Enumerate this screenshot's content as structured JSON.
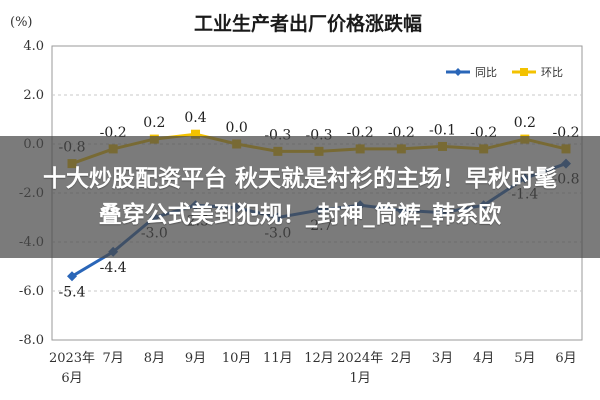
{
  "chart_data": {
    "type": "line",
    "title": "工业生产者出厂价格涨跌幅",
    "ylabel": "(%)",
    "ylim": [
      -8.0,
      4.0
    ],
    "yticks": [
      "4.0",
      "2.0",
      "0.0",
      "-2.0",
      "-4.0",
      "-6.0",
      "-8.0"
    ],
    "categories": [
      "2023年6月",
      "7月",
      "8月",
      "9月",
      "10月",
      "11月",
      "12月",
      "2024年1月",
      "2月",
      "3月",
      "4月",
      "5月",
      "6月"
    ],
    "x_tick_lines": [
      [
        "2023年",
        "6月"
      ],
      [
        "7月"
      ],
      [
        "8月"
      ],
      [
        "9月"
      ],
      [
        "10月"
      ],
      [
        "11月"
      ],
      [
        "12月"
      ],
      [
        "2024年",
        "1月"
      ],
      [
        "2月"
      ],
      [
        "3月"
      ],
      [
        "4月"
      ],
      [
        "5月"
      ],
      [
        "6月"
      ]
    ],
    "legend_position": "top-right",
    "series": [
      {
        "name": "同比",
        "color": "#2a66b8",
        "values": [
          -5.4,
          -4.4,
          -3.0,
          -2.5,
          -2.6,
          -3.0,
          -2.7,
          -2.5,
          -2.7,
          -2.8,
          -2.5,
          -1.4,
          -0.8
        ],
        "labels": [
          "-5.4",
          "-4.4",
          "-3.0",
          "-2.5",
          "",
          "-3.0",
          "-2.7",
          "",
          "",
          "",
          "",
          "-1.4",
          "-0.8"
        ]
      },
      {
        "name": "环比",
        "color": "#f3c200",
        "values": [
          -0.8,
          -0.2,
          0.2,
          0.4,
          0.0,
          -0.3,
          -0.3,
          -0.2,
          -0.2,
          -0.1,
          -0.2,
          0.2,
          -0.2
        ],
        "labels": [
          "-0.8",
          "-0.2",
          "0.2",
          "0.4",
          "0.0",
          "-0.3",
          "-0.3",
          "-0.2",
          "-0.2",
          "-0.1",
          "-0.2",
          "0.2",
          "-0.2"
        ]
      }
    ]
  },
  "overlay": {
    "line1": "十大炒股配资平台 秋天就是衬衫的主场！早秋时髦",
    "line2": "叠穿公式美到犯规！_封神_筒裤_韩系欧"
  }
}
